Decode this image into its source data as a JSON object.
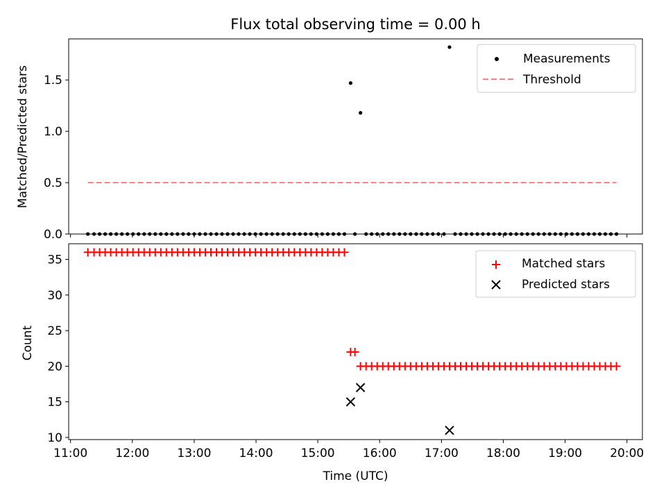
{
  "chart_data": [
    {
      "type": "scatter",
      "title": "Flux total observing time = 0.00 h",
      "ylabel": "Matched/Predicted stars",
      "xlabel": "",
      "xlim_hours": [
        10.97,
        20.25
      ],
      "ylim": [
        0,
        1.9
      ],
      "yticks": [
        0.0,
        0.5,
        1.0,
        1.5
      ],
      "yticklabels": [
        "0.0",
        "0.5",
        "1.0",
        "1.5"
      ],
      "legend_position": "top-right",
      "series": [
        {
          "name": "Measurements",
          "marker": "dot",
          "color": "#000000",
          "points": [
            [
              11.28,
              0
            ],
            [
              11.38,
              0
            ],
            [
              11.47,
              0
            ],
            [
              11.56,
              0
            ],
            [
              11.65,
              0
            ],
            [
              11.74,
              0
            ],
            [
              11.83,
              0
            ],
            [
              11.92,
              0
            ],
            [
              12.01,
              0
            ],
            [
              12.1,
              0
            ],
            [
              12.19,
              0
            ],
            [
              12.28,
              0
            ],
            [
              12.37,
              0
            ],
            [
              12.46,
              0
            ],
            [
              12.55,
              0
            ],
            [
              12.64,
              0
            ],
            [
              12.73,
              0
            ],
            [
              12.82,
              0
            ],
            [
              12.91,
              0
            ],
            [
              13.0,
              0
            ],
            [
              13.09,
              0
            ],
            [
              13.18,
              0
            ],
            [
              13.27,
              0
            ],
            [
              13.36,
              0
            ],
            [
              13.45,
              0
            ],
            [
              13.54,
              0
            ],
            [
              13.63,
              0
            ],
            [
              13.72,
              0
            ],
            [
              13.81,
              0
            ],
            [
              13.9,
              0
            ],
            [
              13.99,
              0
            ],
            [
              14.08,
              0
            ],
            [
              14.17,
              0
            ],
            [
              14.26,
              0
            ],
            [
              14.35,
              0
            ],
            [
              14.44,
              0
            ],
            [
              14.53,
              0
            ],
            [
              14.62,
              0
            ],
            [
              14.71,
              0
            ],
            [
              14.8,
              0
            ],
            [
              14.89,
              0
            ],
            [
              14.98,
              0
            ],
            [
              15.07,
              0
            ],
            [
              15.16,
              0
            ],
            [
              15.25,
              0
            ],
            [
              15.34,
              0
            ],
            [
              15.43,
              0
            ],
            [
              15.53,
              1.47
            ],
            [
              15.6,
              0
            ],
            [
              15.69,
              1.18
            ],
            [
              15.78,
              0
            ],
            [
              15.87,
              0
            ],
            [
              15.96,
              0
            ],
            [
              16.05,
              0
            ],
            [
              16.14,
              0
            ],
            [
              16.23,
              0
            ],
            [
              16.32,
              0
            ],
            [
              16.41,
              0
            ],
            [
              16.5,
              0
            ],
            [
              16.59,
              0
            ],
            [
              16.68,
              0
            ],
            [
              16.77,
              0
            ],
            [
              16.86,
              0
            ],
            [
              16.95,
              0
            ],
            [
              17.04,
              0
            ],
            [
              17.13,
              1.82
            ],
            [
              17.22,
              0
            ],
            [
              17.31,
              0
            ],
            [
              17.4,
              0
            ],
            [
              17.49,
              0
            ],
            [
              17.58,
              0
            ],
            [
              17.67,
              0
            ],
            [
              17.76,
              0
            ],
            [
              17.85,
              0
            ],
            [
              17.94,
              0
            ],
            [
              18.03,
              0
            ],
            [
              18.12,
              0
            ],
            [
              18.21,
              0
            ],
            [
              18.3,
              0
            ],
            [
              18.39,
              0
            ],
            [
              18.48,
              0
            ],
            [
              18.57,
              0
            ],
            [
              18.66,
              0
            ],
            [
              18.75,
              0
            ],
            [
              18.84,
              0
            ],
            [
              18.93,
              0
            ],
            [
              19.02,
              0
            ],
            [
              19.11,
              0
            ],
            [
              19.2,
              0
            ],
            [
              19.29,
              0
            ],
            [
              19.38,
              0
            ],
            [
              19.47,
              0
            ],
            [
              19.56,
              0
            ],
            [
              19.65,
              0
            ],
            [
              19.74,
              0
            ],
            [
              19.83,
              0
            ]
          ]
        },
        {
          "name": "Threshold",
          "marker": "dashed-line",
          "color": "#ff8080",
          "points": [
            [
              11.28,
              0.5
            ],
            [
              19.83,
              0.5
            ]
          ]
        }
      ]
    },
    {
      "type": "scatter",
      "title": "",
      "ylabel": "Count",
      "xlabel": "Time (UTC)",
      "xlim_hours": [
        10.97,
        20.25
      ],
      "ylim": [
        9.7,
        37.2
      ],
      "yticks": [
        10,
        15,
        20,
        25,
        30,
        35
      ],
      "yticklabels": [
        "10",
        "15",
        "20",
        "25",
        "30",
        "35"
      ],
      "xticks_hours": [
        11,
        12,
        13,
        14,
        15,
        16,
        17,
        18,
        19,
        20
      ],
      "xticklabels": [
        "11:00",
        "12:00",
        "13:00",
        "14:00",
        "15:00",
        "16:00",
        "17:00",
        "18:00",
        "19:00",
        "20:00"
      ],
      "legend_position": "top-right",
      "series": [
        {
          "name": "Matched stars",
          "marker": "plus",
          "color": "#ff0000",
          "points": [
            [
              11.28,
              36
            ],
            [
              11.38,
              36
            ],
            [
              11.47,
              36
            ],
            [
              11.56,
              36
            ],
            [
              11.65,
              36
            ],
            [
              11.74,
              36
            ],
            [
              11.83,
              36
            ],
            [
              11.92,
              36
            ],
            [
              12.01,
              36
            ],
            [
              12.1,
              36
            ],
            [
              12.19,
              36
            ],
            [
              12.28,
              36
            ],
            [
              12.37,
              36
            ],
            [
              12.46,
              36
            ],
            [
              12.55,
              36
            ],
            [
              12.64,
              36
            ],
            [
              12.73,
              36
            ],
            [
              12.82,
              36
            ],
            [
              12.91,
              36
            ],
            [
              13.0,
              36
            ],
            [
              13.09,
              36
            ],
            [
              13.18,
              36
            ],
            [
              13.27,
              36
            ],
            [
              13.36,
              36
            ],
            [
              13.45,
              36
            ],
            [
              13.54,
              36
            ],
            [
              13.63,
              36
            ],
            [
              13.72,
              36
            ],
            [
              13.81,
              36
            ],
            [
              13.9,
              36
            ],
            [
              13.99,
              36
            ],
            [
              14.08,
              36
            ],
            [
              14.17,
              36
            ],
            [
              14.26,
              36
            ],
            [
              14.35,
              36
            ],
            [
              14.44,
              36
            ],
            [
              14.53,
              36
            ],
            [
              14.62,
              36
            ],
            [
              14.71,
              36
            ],
            [
              14.8,
              36
            ],
            [
              14.89,
              36
            ],
            [
              14.98,
              36
            ],
            [
              15.07,
              36
            ],
            [
              15.16,
              36
            ],
            [
              15.25,
              36
            ],
            [
              15.34,
              36
            ],
            [
              15.43,
              36
            ],
            [
              15.53,
              22
            ],
            [
              15.6,
              22
            ],
            [
              15.69,
              20
            ],
            [
              15.78,
              20
            ],
            [
              15.87,
              20
            ],
            [
              15.96,
              20
            ],
            [
              16.05,
              20
            ],
            [
              16.14,
              20
            ],
            [
              16.23,
              20
            ],
            [
              16.32,
              20
            ],
            [
              16.41,
              20
            ],
            [
              16.5,
              20
            ],
            [
              16.59,
              20
            ],
            [
              16.68,
              20
            ],
            [
              16.77,
              20
            ],
            [
              16.86,
              20
            ],
            [
              16.95,
              20
            ],
            [
              17.04,
              20
            ],
            [
              17.13,
              20
            ],
            [
              17.22,
              20
            ],
            [
              17.31,
              20
            ],
            [
              17.4,
              20
            ],
            [
              17.49,
              20
            ],
            [
              17.58,
              20
            ],
            [
              17.67,
              20
            ],
            [
              17.76,
              20
            ],
            [
              17.85,
              20
            ],
            [
              17.94,
              20
            ],
            [
              18.03,
              20
            ],
            [
              18.12,
              20
            ],
            [
              18.21,
              20
            ],
            [
              18.3,
              20
            ],
            [
              18.39,
              20
            ],
            [
              18.48,
              20
            ],
            [
              18.57,
              20
            ],
            [
              18.66,
              20
            ],
            [
              18.75,
              20
            ],
            [
              18.84,
              20
            ],
            [
              18.93,
              20
            ],
            [
              19.02,
              20
            ],
            [
              19.11,
              20
            ],
            [
              19.2,
              20
            ],
            [
              19.29,
              20
            ],
            [
              19.38,
              20
            ],
            [
              19.47,
              20
            ],
            [
              19.56,
              20
            ],
            [
              19.65,
              20
            ],
            [
              19.74,
              20
            ],
            [
              19.83,
              20
            ]
          ]
        },
        {
          "name": "Predicted stars",
          "marker": "x",
          "color": "#000000",
          "points": [
            [
              15.53,
              15
            ],
            [
              15.69,
              17
            ],
            [
              17.13,
              11
            ]
          ]
        }
      ]
    }
  ]
}
